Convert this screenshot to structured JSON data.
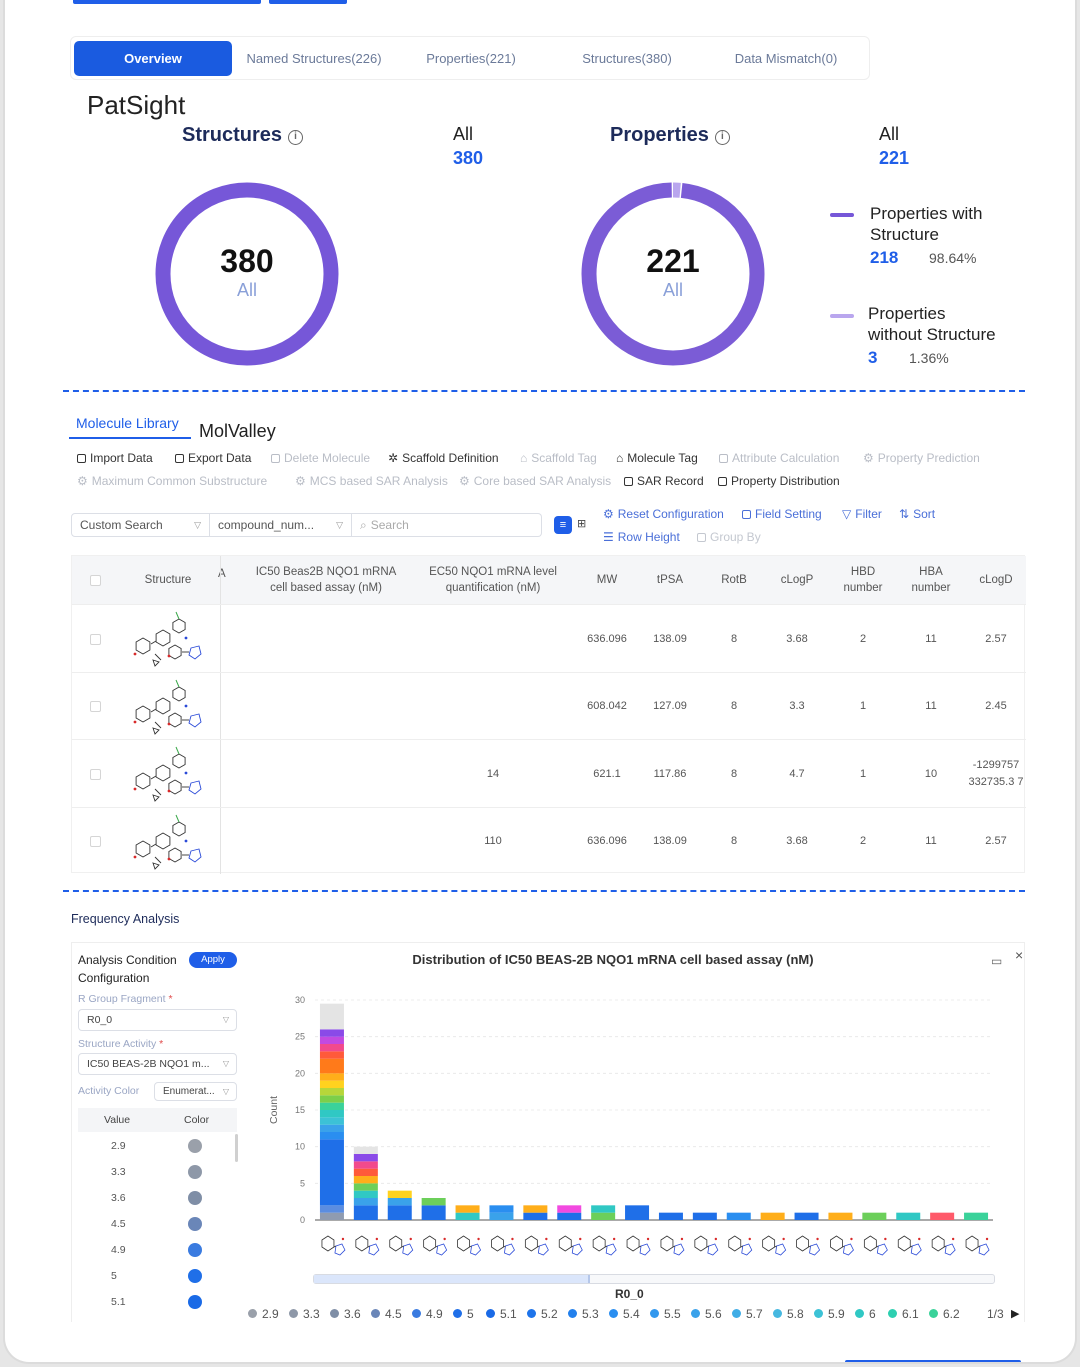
{
  "tabs": [
    {
      "label": "Overview"
    },
    {
      "label": "Named Structures(226)"
    },
    {
      "label": "Properties(221)"
    },
    {
      "label": "Structures(380)"
    },
    {
      "label": "Data Mismatch(0)"
    }
  ],
  "brand": "PatSight",
  "structures": {
    "title": "Structures",
    "all_label": "All",
    "all_value": "380",
    "center_value": "380",
    "center_label": "All",
    "ring_fraction": 1.0
  },
  "properties": {
    "title": "Properties",
    "all_label": "All",
    "all_value": "221",
    "center_value": "221",
    "center_label": "All",
    "with": {
      "title_1": "Properties with",
      "title_2": "Structure",
      "count": "218",
      "pct": "98.64%",
      "fraction": 0.9864,
      "color": "#7b5cd6"
    },
    "without": {
      "title_1": "Properties",
      "title_2": "without Structure",
      "count": "3",
      "pct": "1.36%",
      "fraction": 0.0136,
      "color": "#b9a6ee"
    }
  },
  "library": {
    "tabs": [
      "Molecule Library",
      "MolValley"
    ],
    "toolbar_row1": [
      {
        "label": "Import Data",
        "disabled": false
      },
      {
        "label": "Export Data",
        "disabled": false
      },
      {
        "label": "Delete Molecule",
        "disabled": true
      },
      {
        "label": "Scaffold Definition",
        "disabled": false
      },
      {
        "label": "Scaffold Tag",
        "disabled": true
      },
      {
        "label": "Molecule Tag",
        "disabled": false
      },
      {
        "label": "Attribute Calculation",
        "disabled": true
      },
      {
        "label": "Property Prediction",
        "disabled": true
      }
    ],
    "toolbar_row2": [
      {
        "label": "Maximum Common Substructure",
        "disabled": true
      },
      {
        "label": "MCS based SAR Analysis",
        "disabled": true
      },
      {
        "label": "Core based SAR Analysis",
        "disabled": true
      },
      {
        "label": "SAR Record",
        "disabled": false
      },
      {
        "label": "Property Distribution",
        "disabled": false
      }
    ],
    "search": {
      "mode": "Custom Search",
      "field": "compound_num...",
      "placeholder": "Search"
    },
    "actions": {
      "reset": "Reset Configuration",
      "field_setting": "Field Setting",
      "filter": "Filter",
      "sort": "Sort",
      "row_height": "Row Height",
      "group_by": "Group By"
    },
    "columns": [
      "Structure",
      "A",
      "IC50 Beas2B NQO1 mRNA cell based assay (nM)",
      "EC50 NQO1 mRNA level quantification (nM)",
      "MW",
      "tPSA",
      "RotB",
      "cLogP",
      "HBD number",
      "HBA number",
      "cLogD"
    ],
    "rows": [
      {
        "ic50": "",
        "ec50": "",
        "mw": "636.096",
        "tpsa": "138.09",
        "rotb": "8",
        "clogp": "3.68",
        "hbd": "2",
        "hba": "11",
        "clogd": "2.57"
      },
      {
        "ic50": "",
        "ec50": "",
        "mw": "608.042",
        "tpsa": "127.09",
        "rotb": "8",
        "clogp": "3.3",
        "hbd": "1",
        "hba": "11",
        "clogd": "2.45"
      },
      {
        "ic50": "",
        "ec50": "14",
        "mw": "621.1",
        "tpsa": "117.86",
        "rotb": "8",
        "clogp": "4.7",
        "hbd": "1",
        "hba": "10",
        "clogd": "-1299757 332735.3 7"
      },
      {
        "ic50": "",
        "ec50": "110",
        "mw": "636.096",
        "tpsa": "138.09",
        "rotb": "8",
        "clogp": "3.68",
        "hbd": "2",
        "hba": "11",
        "clogd": "2.57"
      }
    ]
  },
  "frequency": {
    "title": "Frequency Analysis",
    "config": {
      "title_1": "Analysis Condition",
      "title_2": "Configuration",
      "apply": "Apply",
      "r_group_label": "R Group Fragment",
      "r_group_value": "R0_0",
      "activity_label": "Structure Activity",
      "activity_value": "IC50 BEAS-2B NQO1 m...",
      "color_label": "Activity Color",
      "color_value": "Enumerat...",
      "value_header": "Value",
      "color_header": "Color",
      "value_colors": [
        {
          "value": "2.9",
          "color": "#9aa0aa"
        },
        {
          "value": "3.3",
          "color": "#8e98a8"
        },
        {
          "value": "3.6",
          "color": "#7f8ea6"
        },
        {
          "value": "4.5",
          "color": "#6a86b8"
        },
        {
          "value": "4.9",
          "color": "#3a7be0"
        },
        {
          "value": "5",
          "color": "#1f6fe8"
        },
        {
          "value": "5.1",
          "color": "#1a6ae6"
        }
      ]
    },
    "chart_title": "Distribution of IC50 BEAS-2B NQO1 mRNA cell based assay (nM)",
    "legend_page": "1/3"
  },
  "chart_data": {
    "type": "bar",
    "title": "Distribution of IC50 BEAS-2B NQO1 mRNA cell based assay (nM)",
    "xlabel": "R0_0",
    "ylabel": "Count",
    "ylim": [
      0,
      30
    ],
    "yticks": [
      0,
      5,
      10,
      15,
      20,
      25,
      30
    ],
    "legend": [
      "2.9",
      "3.3",
      "3.6",
      "4.5",
      "4.9",
      "5",
      "5.1",
      "5.2",
      "5.3",
      "5.4",
      "5.5",
      "5.6",
      "5.7",
      "5.8",
      "5.9",
      "6",
      "6.1",
      "6.2"
    ],
    "legend_colors": [
      "#9aa0aa",
      "#8e98a8",
      "#7f8ea6",
      "#6a86b8",
      "#3a7be0",
      "#1f6fe8",
      "#1a6ae6",
      "#1e74ea",
      "#2280ec",
      "#2a8ef0",
      "#3298ee",
      "#3aa2ea",
      "#40ade6",
      "#46b8e0",
      "#3cc2d6",
      "#30c8c4",
      "#2dcfb0",
      "#3ad29a"
    ],
    "bars": [
      {
        "segments": [
          {
            "value": 1,
            "color": "#8f9bb0"
          },
          {
            "value": 1,
            "color": "#5b8de0"
          },
          {
            "value": 9,
            "color": "#1f6fe8"
          },
          {
            "value": 1,
            "color": "#2a8ef0"
          },
          {
            "value": 1,
            "color": "#3aa2ea"
          },
          {
            "value": 1,
            "color": "#3cc2d6"
          },
          {
            "value": 1,
            "color": "#30c8c4"
          },
          {
            "value": 1,
            "color": "#3ad29a"
          },
          {
            "value": 1,
            "color": "#7ccf4a"
          },
          {
            "value": 1,
            "color": "#b7d63a"
          },
          {
            "value": 1,
            "color": "#ffd21f"
          },
          {
            "value": 1,
            "color": "#ffae1a"
          },
          {
            "value": 2,
            "color": "#ff7a1a"
          },
          {
            "value": 1,
            "color": "#ff5a3a"
          },
          {
            "value": 1,
            "color": "#f24a8c"
          },
          {
            "value": 1,
            "color": "#c24ae0"
          },
          {
            "value": 1,
            "color": "#8a4ae8"
          },
          {
            "value": 3.5,
            "color": "#e4e4e4"
          }
        ]
      },
      {
        "segments": [
          {
            "value": 2,
            "color": "#1f6fe8"
          },
          {
            "value": 1,
            "color": "#3aa2ea"
          },
          {
            "value": 1,
            "color": "#30c8c4"
          },
          {
            "value": 1,
            "color": "#6ccf5a"
          },
          {
            "value": 1,
            "color": "#ffae1a"
          },
          {
            "value": 1,
            "color": "#ff5a3a"
          },
          {
            "value": 1,
            "color": "#f24a8c"
          },
          {
            "value": 1,
            "color": "#8a4ae8"
          },
          {
            "value": 1,
            "color": "#e4e4e4"
          }
        ]
      },
      {
        "segments": [
          {
            "value": 2,
            "color": "#1f6fe8"
          },
          {
            "value": 1,
            "color": "#3aa2ea"
          },
          {
            "value": 1,
            "color": "#ffd21f"
          }
        ]
      },
      {
        "segments": [
          {
            "value": 2,
            "color": "#1f6fe8"
          },
          {
            "value": 1,
            "color": "#6ccf5a"
          }
        ]
      },
      {
        "segments": [
          {
            "value": 1,
            "color": "#30c8c4"
          },
          {
            "value": 1,
            "color": "#ffae1a"
          }
        ]
      },
      {
        "segments": [
          {
            "value": 1,
            "color": "#3aa2ea"
          },
          {
            "value": 1,
            "color": "#2a8ef0"
          }
        ]
      },
      {
        "segments": [
          {
            "value": 1,
            "color": "#1f6fe8"
          },
          {
            "value": 1,
            "color": "#ffae1a"
          }
        ]
      },
      {
        "segments": [
          {
            "value": 1,
            "color": "#1f6fe8"
          },
          {
            "value": 1,
            "color": "#f24ae0"
          }
        ]
      },
      {
        "segments": [
          {
            "value": 1,
            "color": "#6ccf5a"
          },
          {
            "value": 1,
            "color": "#30c8c4"
          }
        ]
      },
      {
        "segments": [
          {
            "value": 2,
            "color": "#1f6fe8"
          }
        ]
      },
      {
        "segments": [
          {
            "value": 1,
            "color": "#1f6fe8"
          }
        ]
      },
      {
        "segments": [
          {
            "value": 1,
            "color": "#1f6fe8"
          }
        ]
      },
      {
        "segments": [
          {
            "value": 1,
            "color": "#2a8ef0"
          }
        ]
      },
      {
        "segments": [
          {
            "value": 1,
            "color": "#ffae1a"
          }
        ]
      },
      {
        "segments": [
          {
            "value": 1,
            "color": "#1f6fe8"
          }
        ]
      },
      {
        "segments": [
          {
            "value": 1,
            "color": "#ffae1a"
          }
        ]
      },
      {
        "segments": [
          {
            "value": 1,
            "color": "#6ccf5a"
          }
        ]
      },
      {
        "segments": [
          {
            "value": 1,
            "color": "#30c8c4"
          }
        ]
      },
      {
        "segments": [
          {
            "value": 1,
            "color": "#ff5a6a"
          }
        ]
      },
      {
        "segments": [
          {
            "value": 1,
            "color": "#3ad29a"
          }
        ]
      }
    ]
  }
}
